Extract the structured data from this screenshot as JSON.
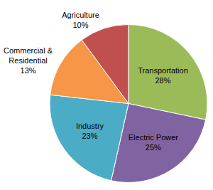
{
  "chart_data": {
    "type": "pie",
    "categories": [
      "Transportation",
      "Electric Power",
      "Industry",
      "Commercial & Residential",
      "Agriculture"
    ],
    "values": [
      28,
      25,
      23,
      13,
      10
    ],
    "value_labels": [
      "28%",
      "25%",
      "23%",
      "13%",
      "10%"
    ],
    "colors": [
      "#9bbb59",
      "#8064a2",
      "#4bacc6",
      "#f79646",
      "#c0504d"
    ],
    "data_labels": true
  }
}
